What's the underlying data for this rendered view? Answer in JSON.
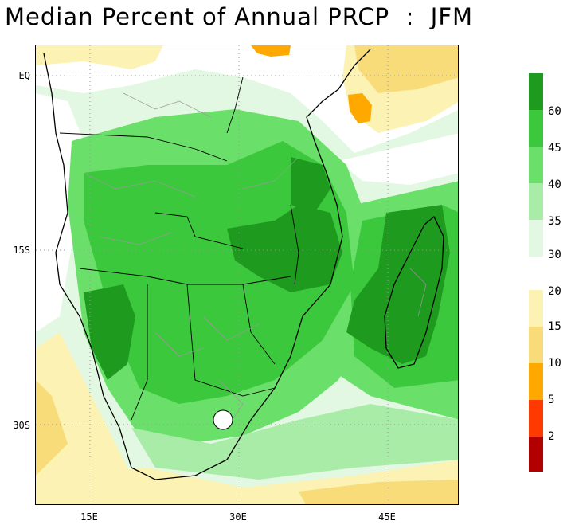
{
  "title": "Median Percent of Annual PRCP  :  JFM",
  "map": {
    "latitude_labels": [
      "EQ",
      "15S",
      "30S"
    ],
    "longitude_labels": [
      "15E",
      "30E",
      "45E"
    ]
  },
  "legend_upper": {
    "labels": [
      "60",
      "45",
      "40",
      "35",
      "30"
    ],
    "colors": [
      "#1e9b1e",
      "#3cc83c",
      "#6ae06a",
      "#a8eca8",
      "#e2f8e2"
    ]
  },
  "legend_lower": {
    "labels": [
      "20",
      "15",
      "10",
      "5",
      "2"
    ],
    "colors": [
      "#fcf2b4",
      "#f8dc7a",
      "#ffa800",
      "#ff3a00",
      "#b20000"
    ]
  },
  "colors": {
    "ocean_white": "#ffffff",
    "green_dark": "#1e9b1e",
    "green_mid": "#3cc83c",
    "green_light": "#6ae06a",
    "green_pale": "#a8eca8",
    "green_faint": "#e2f8e2",
    "yellow_pale": "#fcf2b4",
    "yellow": "#f8dc7a",
    "orange": "#ffa800"
  }
}
